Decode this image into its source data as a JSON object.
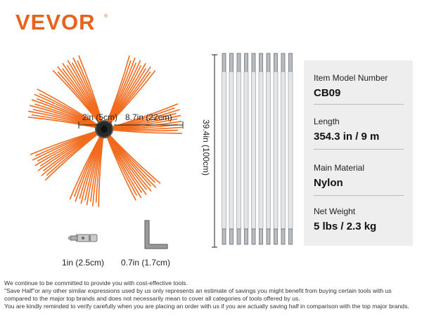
{
  "brand": {
    "name": "VEVOR",
    "registered": "®",
    "color": "#e8621c"
  },
  "dimensions": {
    "hub_diameter": "2in (5cm)",
    "bristle_length": "8.7in (22cm)",
    "rod_length": "39.4in (100cm)",
    "connector_length": "1in (2.5cm)",
    "wrench_length": "0.7in (1.7cm)"
  },
  "specs": [
    {
      "label": "Item Model Number",
      "value": "CB09"
    },
    {
      "label": "Length",
      "value": "354.3 in / 9 m"
    },
    {
      "label": "Main Material",
      "value": "Nylon"
    },
    {
      "label": "Net Weight",
      "value": "5 lbs / 2.3 kg"
    }
  ],
  "disclaimer": [
    "We continue to be committed to provide you with cost-effective tools.",
    "\"Save Half\"or any other similar expressions used by us only represents an estimate of savings you might benefit from buying certain tools with us",
    "compared to the major top brands and does not necessarily mean to cover all categories of tools offered by us.",
    "You are kindly reminded to verify carefully when you are placing an order with us if you are actually saving half in comparison with the top major brands."
  ],
  "colors": {
    "bristle": "#f26a1b",
    "rod": "#e4e6e8",
    "panel": "#eeeeee"
  },
  "rod_count": 10
}
